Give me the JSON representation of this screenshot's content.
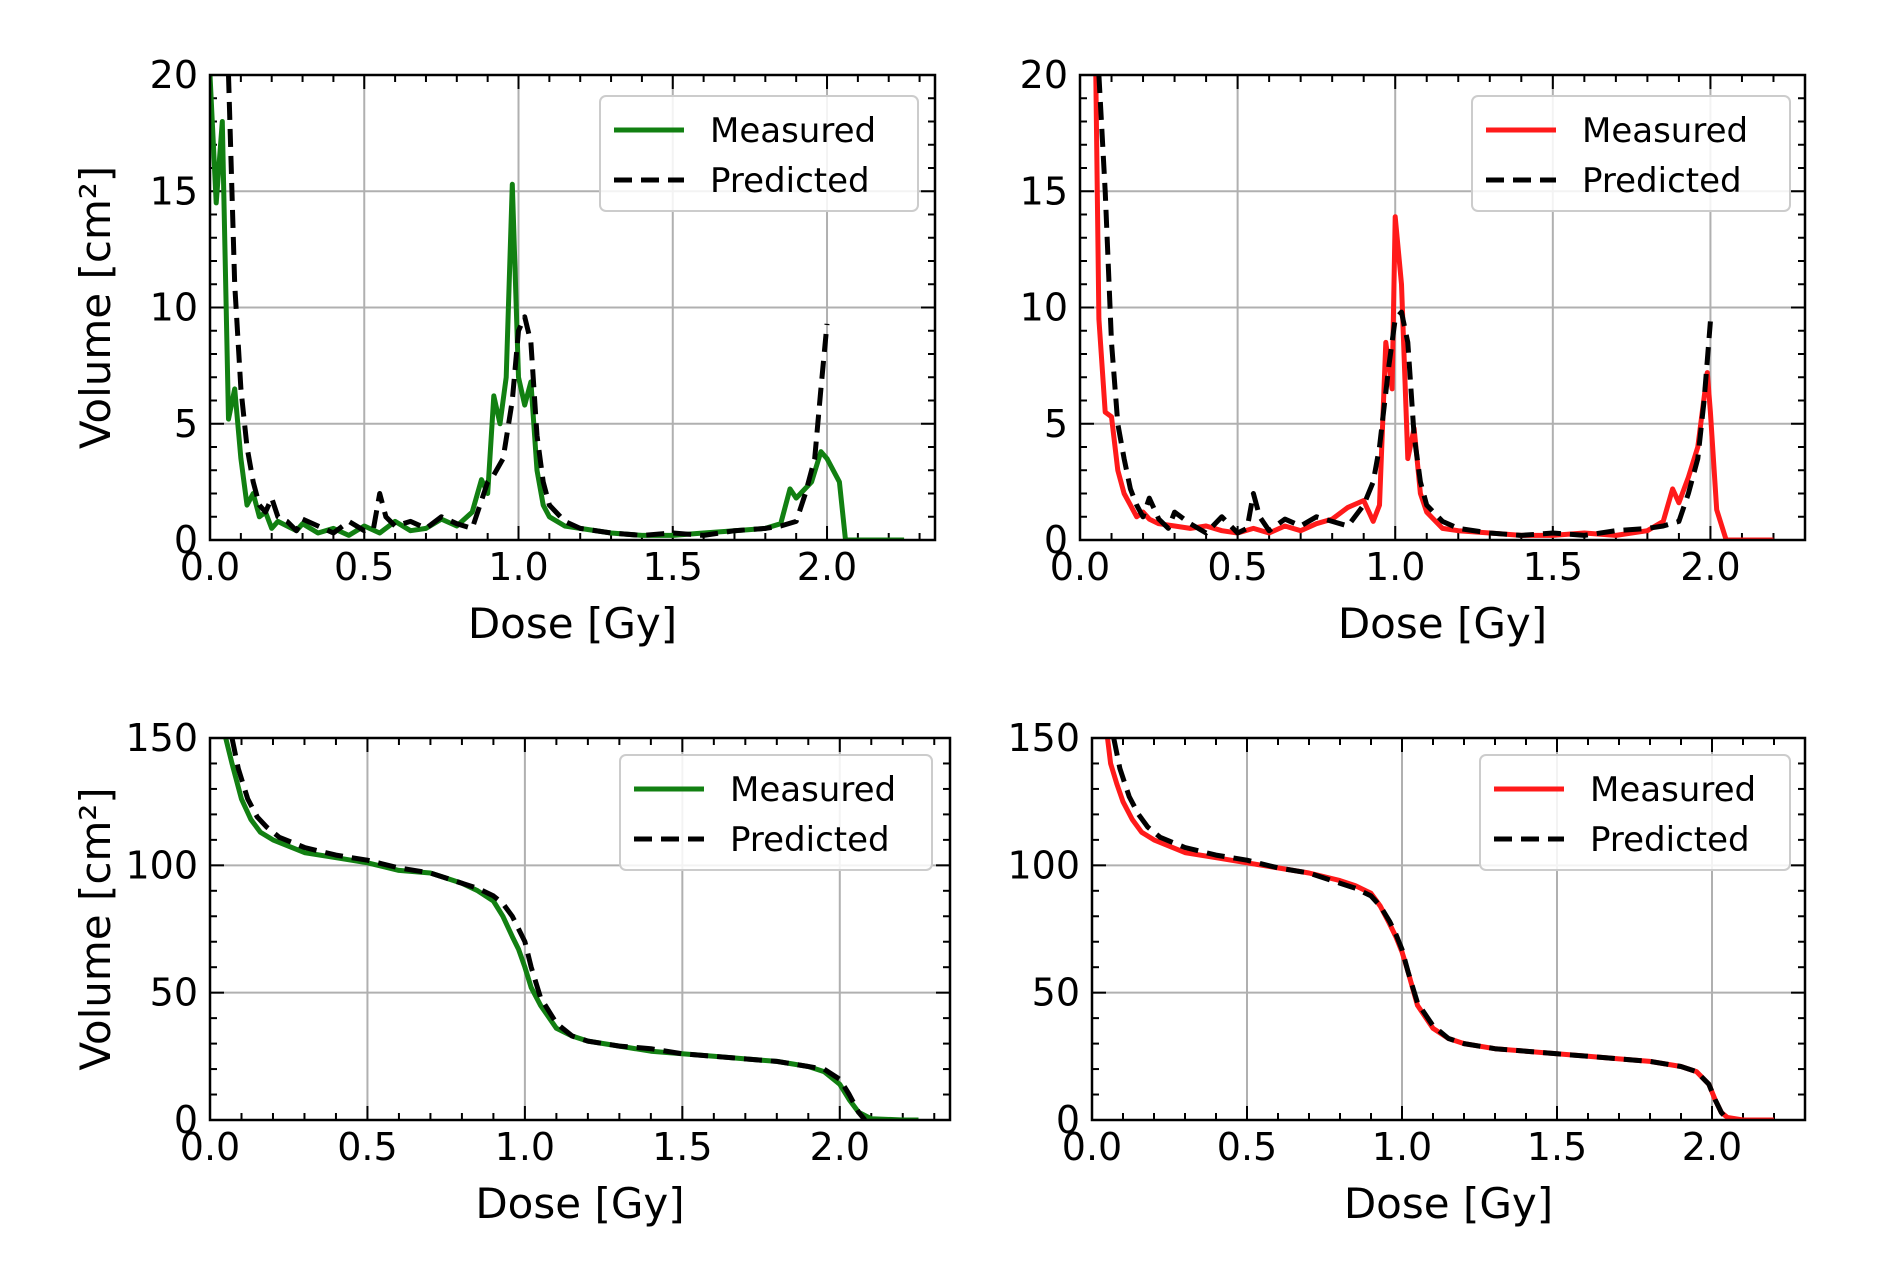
{
  "colors": {
    "green": "#128012",
    "red": "#ff1a1a",
    "black": "#000000",
    "grid": "#b0b0b0"
  },
  "chart_data": [
    {
      "panel": "top-left",
      "type": "line",
      "xlabel": "Dose [Gy]",
      "ylabel": "Volume [cm²]",
      "xlim": [
        0.0,
        2.35
      ],
      "ylim": [
        0,
        20
      ],
      "xticks": [
        "0.0",
        "0.5",
        "1.0",
        "1.5",
        "2.0"
      ],
      "xtick_values": [
        0.0,
        0.5,
        1.0,
        1.5,
        2.0
      ],
      "yticks": [
        "0",
        "5",
        "10",
        "15",
        "20"
      ],
      "ytick_values": [
        0,
        5,
        10,
        15,
        20
      ],
      "grid": true,
      "legend": "top-right",
      "series": [
        {
          "name": "Measured",
          "color": "#128012",
          "style": "solid",
          "x": [
            0.0,
            0.02,
            0.04,
            0.06,
            0.08,
            0.1,
            0.12,
            0.14,
            0.16,
            0.18,
            0.2,
            0.22,
            0.25,
            0.28,
            0.3,
            0.35,
            0.4,
            0.45,
            0.5,
            0.55,
            0.6,
            0.65,
            0.7,
            0.75,
            0.8,
            0.85,
            0.88,
            0.9,
            0.92,
            0.94,
            0.96,
            0.98,
            1.0,
            1.02,
            1.04,
            1.06,
            1.08,
            1.1,
            1.15,
            1.2,
            1.3,
            1.4,
            1.5,
            1.6,
            1.7,
            1.8,
            1.85,
            1.88,
            1.9,
            1.95,
            1.98,
            2.0,
            2.04,
            2.06,
            2.1,
            2.2,
            2.25
          ],
          "y": [
            20,
            14.5,
            18,
            5.2,
            6.5,
            3.5,
            1.5,
            2.0,
            1.0,
            1.2,
            0.5,
            0.8,
            0.6,
            0.4,
            0.7,
            0.3,
            0.5,
            0.2,
            0.6,
            0.3,
            0.8,
            0.4,
            0.5,
            0.9,
            0.6,
            1.2,
            2.6,
            2.0,
            6.2,
            5.0,
            7.0,
            15.3,
            7.0,
            5.8,
            6.8,
            3.0,
            1.5,
            1.0,
            0.6,
            0.5,
            0.3,
            0.2,
            0.2,
            0.3,
            0.4,
            0.5,
            0.7,
            2.2,
            1.8,
            2.5,
            3.8,
            3.5,
            2.5,
            0,
            0,
            0,
            0
          ]
        },
        {
          "name": "Predicted",
          "color": "#000000",
          "style": "dashed",
          "x": [
            0.06,
            0.08,
            0.1,
            0.12,
            0.14,
            0.16,
            0.18,
            0.2,
            0.22,
            0.25,
            0.28,
            0.3,
            0.35,
            0.4,
            0.45,
            0.5,
            0.53,
            0.55,
            0.57,
            0.6,
            0.65,
            0.7,
            0.75,
            0.8,
            0.85,
            0.9,
            0.92,
            0.95,
            0.98,
            1.0,
            1.02,
            1.04,
            1.06,
            1.08,
            1.1,
            1.15,
            1.2,
            1.3,
            1.4,
            1.5,
            1.6,
            1.7,
            1.8,
            1.85,
            1.9,
            1.93,
            1.96,
            1.98,
            2.0
          ],
          "y": [
            20,
            11,
            6.5,
            4.0,
            2.5,
            1.5,
            1.2,
            1.8,
            1.0,
            0.8,
            0.4,
            0.9,
            0.6,
            0.3,
            0.8,
            0.4,
            0.5,
            2.0,
            1.0,
            0.6,
            0.8,
            0.5,
            1.0,
            0.7,
            0.5,
            2.5,
            2.8,
            3.5,
            6.0,
            9.0,
            9.6,
            8.5,
            4.5,
            2.5,
            1.5,
            0.8,
            0.5,
            0.3,
            0.2,
            0.3,
            0.2,
            0.4,
            0.5,
            0.6,
            0.8,
            2.0,
            3.5,
            6.5,
            9.3
          ]
        }
      ]
    },
    {
      "panel": "top-right",
      "type": "line",
      "xlabel": "Dose [Gy]",
      "ylabel": "",
      "xlim": [
        0.0,
        2.3
      ],
      "ylim": [
        0,
        20
      ],
      "xticks": [
        "0.0",
        "0.5",
        "1.0",
        "1.5",
        "2.0"
      ],
      "xtick_values": [
        0.0,
        0.5,
        1.0,
        1.5,
        2.0
      ],
      "yticks": [
        "0",
        "5",
        "10",
        "15",
        "20"
      ],
      "ytick_values": [
        0,
        5,
        10,
        15,
        20
      ],
      "grid": true,
      "legend": "top-right",
      "series": [
        {
          "name": "Measured",
          "color": "#ff1a1a",
          "style": "solid",
          "x": [
            0.05,
            0.06,
            0.08,
            0.1,
            0.12,
            0.14,
            0.16,
            0.18,
            0.2,
            0.22,
            0.25,
            0.3,
            0.35,
            0.4,
            0.45,
            0.5,
            0.55,
            0.6,
            0.65,
            0.7,
            0.75,
            0.8,
            0.85,
            0.9,
            0.93,
            0.95,
            0.97,
            0.99,
            1.0,
            1.02,
            1.04,
            1.06,
            1.08,
            1.1,
            1.15,
            1.2,
            1.3,
            1.4,
            1.5,
            1.6,
            1.7,
            1.8,
            1.85,
            1.88,
            1.9,
            1.93,
            1.96,
            1.99,
            2.0,
            2.02,
            2.05,
            2.1,
            2.2
          ],
          "y": [
            20,
            9.5,
            5.5,
            5.3,
            3.0,
            2.0,
            1.5,
            1.0,
            1.2,
            0.9,
            0.7,
            0.6,
            0.5,
            0.6,
            0.4,
            0.3,
            0.5,
            0.3,
            0.6,
            0.4,
            0.7,
            0.9,
            1.4,
            1.7,
            0.8,
            1.5,
            8.5,
            6.5,
            13.9,
            11.0,
            3.5,
            4.8,
            2.0,
            1.2,
            0.5,
            0.4,
            0.3,
            0.2,
            0.2,
            0.3,
            0.2,
            0.4,
            0.8,
            2.2,
            1.6,
            2.7,
            4.0,
            7.2,
            5.5,
            1.3,
            0,
            0,
            0
          ]
        },
        {
          "name": "Predicted",
          "color": "#000000",
          "style": "dashed",
          "x": [
            0.06,
            0.08,
            0.1,
            0.12,
            0.14,
            0.16,
            0.18,
            0.2,
            0.22,
            0.25,
            0.28,
            0.3,
            0.35,
            0.4,
            0.45,
            0.5,
            0.53,
            0.55,
            0.57,
            0.6,
            0.65,
            0.7,
            0.75,
            0.8,
            0.85,
            0.9,
            0.93,
            0.95,
            0.98,
            1.0,
            1.02,
            1.04,
            1.06,
            1.08,
            1.1,
            1.15,
            1.2,
            1.3,
            1.4,
            1.5,
            1.6,
            1.7,
            1.8,
            1.85,
            1.9,
            1.93,
            1.96,
            1.98,
            2.0
          ],
          "y": [
            20,
            15,
            8.5,
            5.0,
            3.5,
            2.2,
            1.5,
            1.0,
            1.8,
            0.9,
            0.5,
            1.2,
            0.7,
            0.3,
            1.0,
            0.3,
            0.5,
            2.0,
            1.0,
            0.4,
            0.9,
            0.6,
            1.0,
            0.8,
            0.6,
            1.5,
            2.5,
            4.0,
            7.5,
            9.5,
            9.8,
            8.5,
            4.5,
            2.5,
            1.5,
            0.8,
            0.5,
            0.3,
            0.2,
            0.3,
            0.2,
            0.4,
            0.5,
            0.6,
            0.8,
            2.0,
            3.5,
            6.0,
            9.4
          ]
        }
      ]
    },
    {
      "panel": "bottom-left",
      "type": "line",
      "xlabel": "Dose [Gy]",
      "ylabel": "Volume [cm²]",
      "xlim": [
        0.0,
        2.35
      ],
      "ylim": [
        0,
        150
      ],
      "xticks": [
        "0.0",
        "0.5",
        "1.0",
        "1.5",
        "2.0"
      ],
      "xtick_values": [
        0.0,
        0.5,
        1.0,
        1.5,
        2.0
      ],
      "yticks": [
        "0",
        "50",
        "100",
        "150"
      ],
      "ytick_values": [
        0,
        50,
        100,
        150
      ],
      "grid": true,
      "legend": "top-right",
      "series": [
        {
          "name": "Measured",
          "color": "#128012",
          "style": "solid",
          "x": [
            0.05,
            0.07,
            0.1,
            0.13,
            0.16,
            0.2,
            0.3,
            0.4,
            0.5,
            0.6,
            0.7,
            0.8,
            0.85,
            0.9,
            0.93,
            0.96,
            0.98,
            1.0,
            1.02,
            1.05,
            1.1,
            1.15,
            1.2,
            1.3,
            1.4,
            1.5,
            1.6,
            1.7,
            1.8,
            1.9,
            1.95,
            2.0,
            2.03,
            2.06,
            2.1,
            2.2,
            2.25
          ],
          "y": [
            150,
            140,
            126,
            118,
            113,
            110,
            105,
            103,
            101,
            98,
            97,
            93,
            90,
            86,
            80,
            72,
            67,
            60,
            52,
            45,
            36,
            33,
            31,
            29,
            27,
            26,
            25,
            24,
            23,
            21,
            19,
            14,
            8,
            3,
            0.5,
            0,
            0
          ]
        },
        {
          "name": "Predicted",
          "color": "#000000",
          "style": "dashed",
          "x": [
            0.07,
            0.09,
            0.12,
            0.15,
            0.18,
            0.22,
            0.3,
            0.4,
            0.5,
            0.6,
            0.7,
            0.8,
            0.85,
            0.9,
            0.93,
            0.96,
            0.98,
            1.0,
            1.02,
            1.05,
            1.1,
            1.15,
            1.2,
            1.3,
            1.4,
            1.5,
            1.6,
            1.7,
            1.8,
            1.9,
            1.95,
            2.0,
            2.03,
            2.06,
            2.08
          ],
          "y": [
            150,
            138,
            126,
            119,
            115,
            111,
            107,
            104,
            102,
            99,
            97,
            93,
            91,
            88,
            85,
            80,
            75,
            70,
            60,
            48,
            38,
            33,
            31,
            29,
            28,
            26,
            25,
            24,
            23,
            21,
            20,
            16,
            10,
            3,
            0
          ]
        }
      ]
    },
    {
      "panel": "bottom-right",
      "type": "line",
      "xlabel": "Dose [Gy]",
      "ylabel": "",
      "xlim": [
        0.0,
        2.3
      ],
      "ylim": [
        0,
        150
      ],
      "xticks": [
        "0.0",
        "0.5",
        "1.0",
        "1.5",
        "2.0"
      ],
      "xtick_values": [
        0.0,
        0.5,
        1.0,
        1.5,
        2.0
      ],
      "yticks": [
        "0",
        "50",
        "100",
        "150"
      ],
      "ytick_values": [
        0,
        50,
        100,
        150
      ],
      "grid": true,
      "legend": "top-right",
      "series": [
        {
          "name": "Measured",
          "color": "#ff1a1a",
          "style": "solid",
          "x": [
            0.05,
            0.06,
            0.08,
            0.1,
            0.13,
            0.16,
            0.2,
            0.3,
            0.4,
            0.5,
            0.6,
            0.7,
            0.8,
            0.85,
            0.9,
            0.93,
            0.96,
            0.98,
            1.0,
            1.02,
            1.05,
            1.1,
            1.15,
            1.2,
            1.3,
            1.4,
            1.5,
            1.6,
            1.7,
            1.8,
            1.9,
            1.95,
            1.99,
            2.01,
            2.03,
            2.05,
            2.1,
            2.2
          ],
          "y": [
            150,
            140,
            132,
            125,
            118,
            113,
            110,
            105,
            103,
            101,
            99,
            97,
            94,
            92,
            89,
            84,
            77,
            72,
            66,
            58,
            45,
            36,
            32,
            30,
            28,
            27,
            26,
            25,
            24,
            23,
            21,
            19,
            14,
            8,
            3,
            1,
            0,
            0
          ]
        },
        {
          "name": "Predicted",
          "color": "#000000",
          "style": "dashed",
          "x": [
            0.07,
            0.09,
            0.12,
            0.15,
            0.18,
            0.22,
            0.3,
            0.4,
            0.5,
            0.6,
            0.7,
            0.8,
            0.85,
            0.9,
            0.93,
            0.96,
            0.98,
            1.0,
            1.02,
            1.05,
            1.1,
            1.15,
            1.2,
            1.3,
            1.4,
            1.5,
            1.6,
            1.7,
            1.8,
            1.9,
            1.95,
            1.99,
            2.01,
            2.03,
            2.05
          ],
          "y": [
            150,
            138,
            127,
            120,
            115,
            111,
            107,
            104,
            102,
            99,
            97,
            93,
            91,
            88,
            84,
            78,
            73,
            67,
            58,
            46,
            37,
            32,
            30,
            28,
            27,
            26,
            25,
            24,
            23,
            21,
            19,
            14,
            8,
            3,
            0
          ]
        }
      ]
    }
  ]
}
